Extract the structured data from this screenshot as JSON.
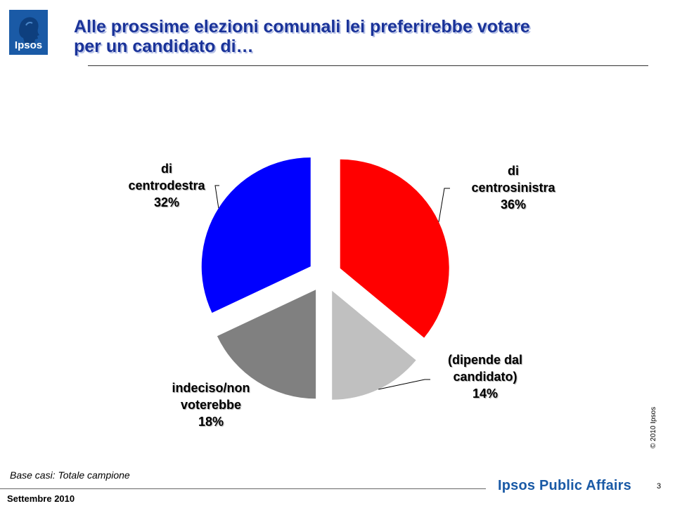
{
  "header": {
    "logo_text": "Ipsos",
    "title_line1": "Alle prossime elezioni comunali lei preferirebbe votare",
    "title_line2": "per un candidato di…"
  },
  "chart_data": {
    "type": "pie",
    "slices": [
      {
        "label_lines": [
          "di",
          "centrosinistra"
        ],
        "value_label": "36%",
        "value": 36,
        "color": "#ff0000"
      },
      {
        "label_lines": [
          "(dipende dal",
          "candidato)"
        ],
        "value_label": "14%",
        "value": 14,
        "color": "#c0c0c0"
      },
      {
        "label_lines": [
          "indeciso/non",
          "voterebbe"
        ],
        "value_label": "18%",
        "value": 18,
        "color": "#808080"
      },
      {
        "label_lines": [
          "di",
          "centrodestra"
        ],
        "value_label": "32%",
        "value": 32,
        "color": "#0000ff"
      }
    ]
  },
  "footer": {
    "base_note": "Base casi: Totale campione",
    "brand": "Ipsos Public Affairs",
    "date": "Settembre 2010",
    "page_number": "3",
    "copyright": "© 2010 Ipsos"
  }
}
